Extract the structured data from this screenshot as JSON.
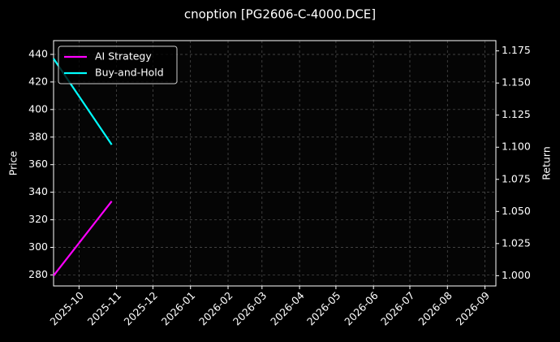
{
  "chart_data": {
    "type": "line",
    "title": "cnoption [PG2606-C-4000.DCE]",
    "ylabel": "Price",
    "y2label": "Return",
    "x": [
      "2025-09-10",
      "2025-10-28"
    ],
    "xlim": [
      "2025-09-10",
      "2026-09-10"
    ],
    "xticks": [
      "2025-10",
      "2025-11",
      "2025-12",
      "2026-01",
      "2026-02",
      "2026-03",
      "2026-04",
      "2026-05",
      "2026-06",
      "2026-07",
      "2026-08",
      "2026-09"
    ],
    "ylim": [
      272,
      450
    ],
    "yticks": [
      280,
      300,
      320,
      340,
      360,
      380,
      400,
      420,
      440
    ],
    "y2lim": [
      0.992,
      1.183
    ],
    "y2ticks": [
      {
        "value": 1,
        "label": "1.000"
      },
      {
        "value": 1.025,
        "label": "1.025"
      },
      {
        "value": 1.05,
        "label": "1.050"
      },
      {
        "value": 1.075,
        "label": "1.075"
      },
      {
        "value": 1.1,
        "label": "1.100"
      },
      {
        "value": 1.125,
        "label": "1.125"
      },
      {
        "value": 1.15,
        "label": "1.150"
      },
      {
        "value": 1.175,
        "label": "1.175"
      }
    ],
    "grid": true,
    "legend": "upper left",
    "series": [
      {
        "name": "AI Strategy",
        "color": "#ff00ff",
        "axis": "y2",
        "values": [
          1.0,
          1.058
        ]
      },
      {
        "name": "Buy-and-Hold",
        "color": "#00ffff",
        "axis": "y2",
        "values": [
          1.169,
          1.102
        ]
      }
    ]
  }
}
